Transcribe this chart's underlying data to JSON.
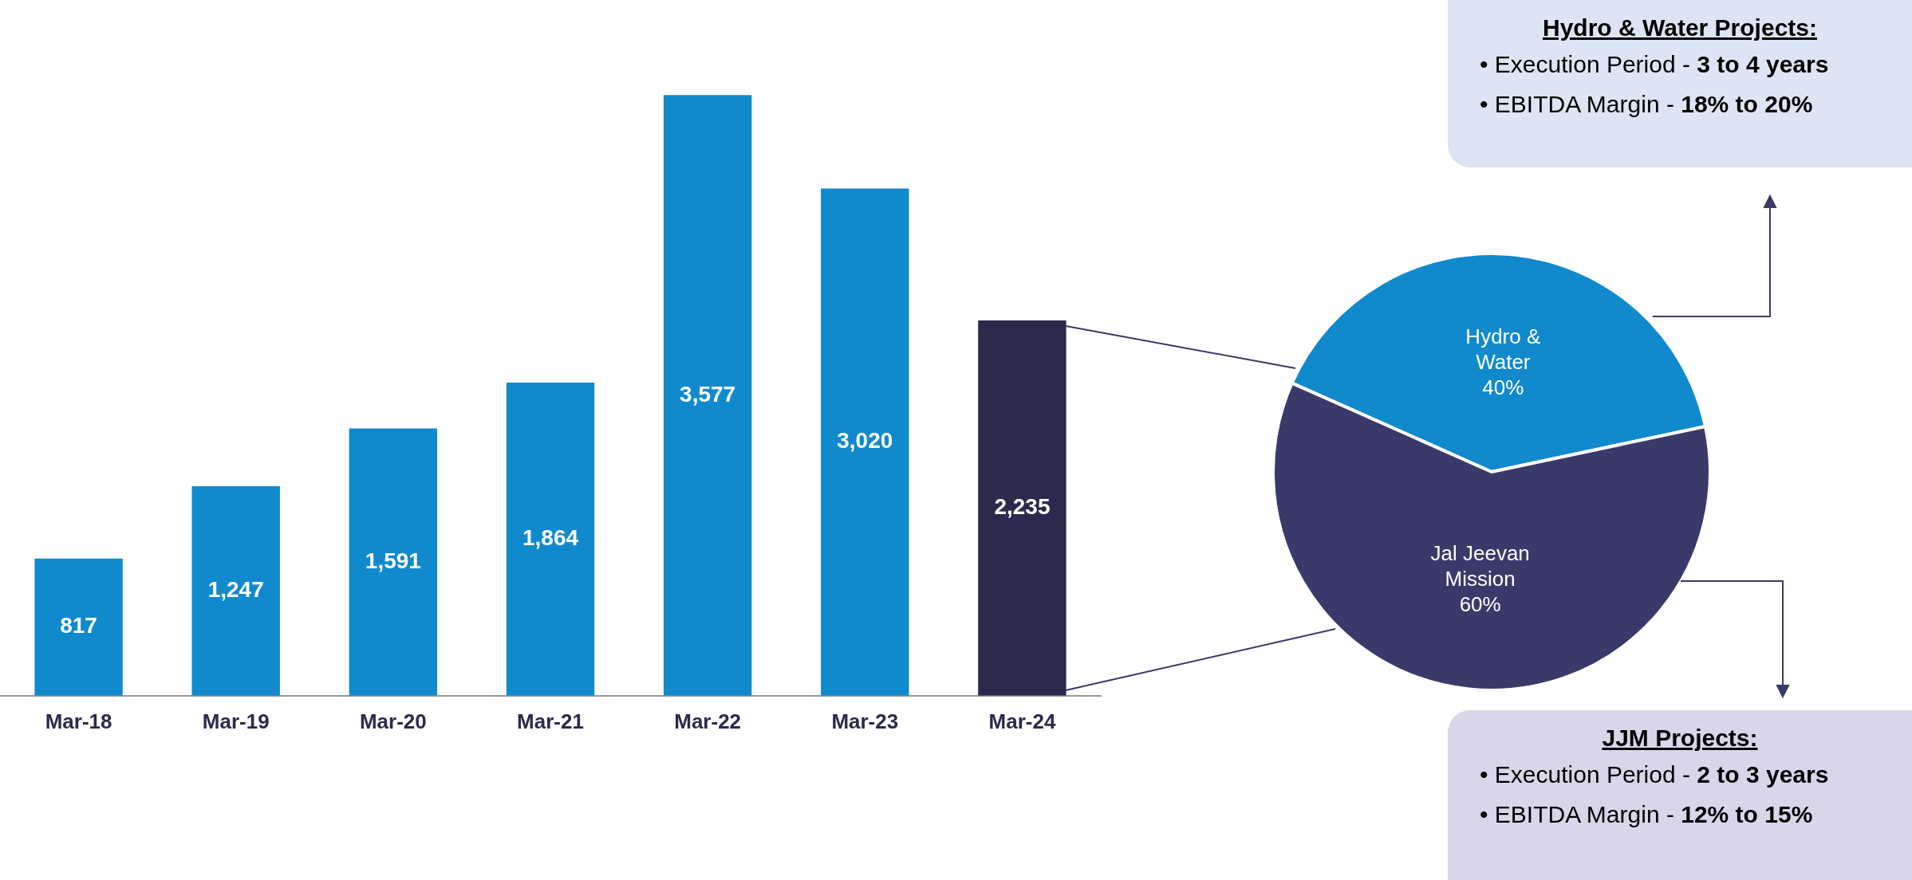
{
  "chart_data": [
    {
      "type": "bar",
      "categories": [
        "Mar-18",
        "Mar-19",
        "Mar-20",
        "Mar-21",
        "Mar-22",
        "Mar-23",
        "Mar-24"
      ],
      "values": [
        817,
        1247,
        1591,
        1864,
        3577,
        3020,
        2235
      ],
      "value_labels": [
        "817",
        "1,247",
        "1,591",
        "1,864",
        "3,577",
        "3,020",
        "2,235"
      ],
      "colors": [
        "#118acd",
        "#118acd",
        "#118acd",
        "#118acd",
        "#118acd",
        "#118acd",
        "#2b2a4c"
      ],
      "grid": false,
      "legend": false
    },
    {
      "type": "pie",
      "categories": [
        "Hydro & Water",
        "Jal Jeevan Mission"
      ],
      "values": [
        40,
        60
      ],
      "value_labels": [
        "40%",
        "60%"
      ],
      "colors": [
        "#118acd",
        "#3a3a6a"
      ],
      "legend": false,
      "annotations": [
        "Hydro & Water Projects:",
        "• Execution Period - 3 to 4 years",
        "• EBITDA Margin - 18% to 20%",
        "JJM Projects:",
        "• Execution Period - 2 to 3 years",
        "• EBITDA Margin - 12% to 15%"
      ]
    }
  ]
}
